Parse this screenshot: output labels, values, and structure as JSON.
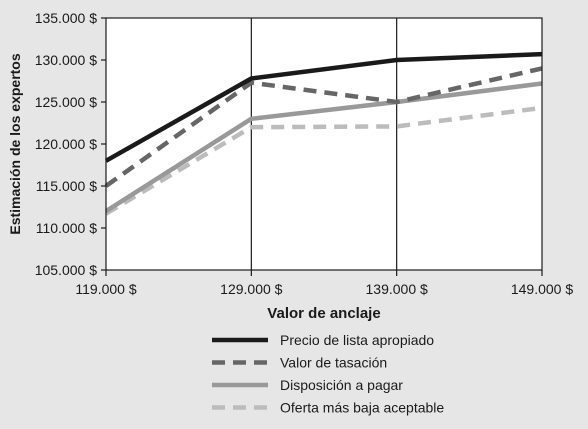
{
  "chart_data": {
    "type": "line",
    "title": "",
    "xlabel": "Valor de anclaje",
    "ylabel": "Estimación de los expertos",
    "x": [
      119000,
      129000,
      139000,
      149000
    ],
    "x_tick_labels": [
      "119.000 $",
      "129.000 $",
      "139.000 $",
      "149.000 $"
    ],
    "xlim": [
      119000,
      149000
    ],
    "ylim": [
      105000,
      135000
    ],
    "y_ticks": [
      105000,
      110000,
      115000,
      120000,
      125000,
      130000,
      135000
    ],
    "y_tick_labels": [
      "105.000 $",
      "110.000 $",
      "115.000 $",
      "120.000 $",
      "125.000 $",
      "130.000 $",
      "135.000 $"
    ],
    "grid": "vertical lines at x ticks",
    "legend_placement": "bottom-center",
    "series": [
      {
        "name": "Precio de lista apropiado",
        "values": [
          118000,
          127800,
          130000,
          130700
        ],
        "color": "#1a1a1a",
        "style": "solid"
      },
      {
        "name": "Valor de tasación",
        "values": [
          115000,
          127300,
          125000,
          129000
        ],
        "color": "#666666",
        "style": "dashed"
      },
      {
        "name": "Disposición a pagar",
        "values": [
          112000,
          123000,
          125000,
          127200
        ],
        "color": "#999999",
        "style": "solid"
      },
      {
        "name": "Oferta más baja aceptable",
        "values": [
          111700,
          122000,
          122100,
          124300
        ],
        "color": "#bcbcbc",
        "style": "dashed"
      }
    ]
  }
}
